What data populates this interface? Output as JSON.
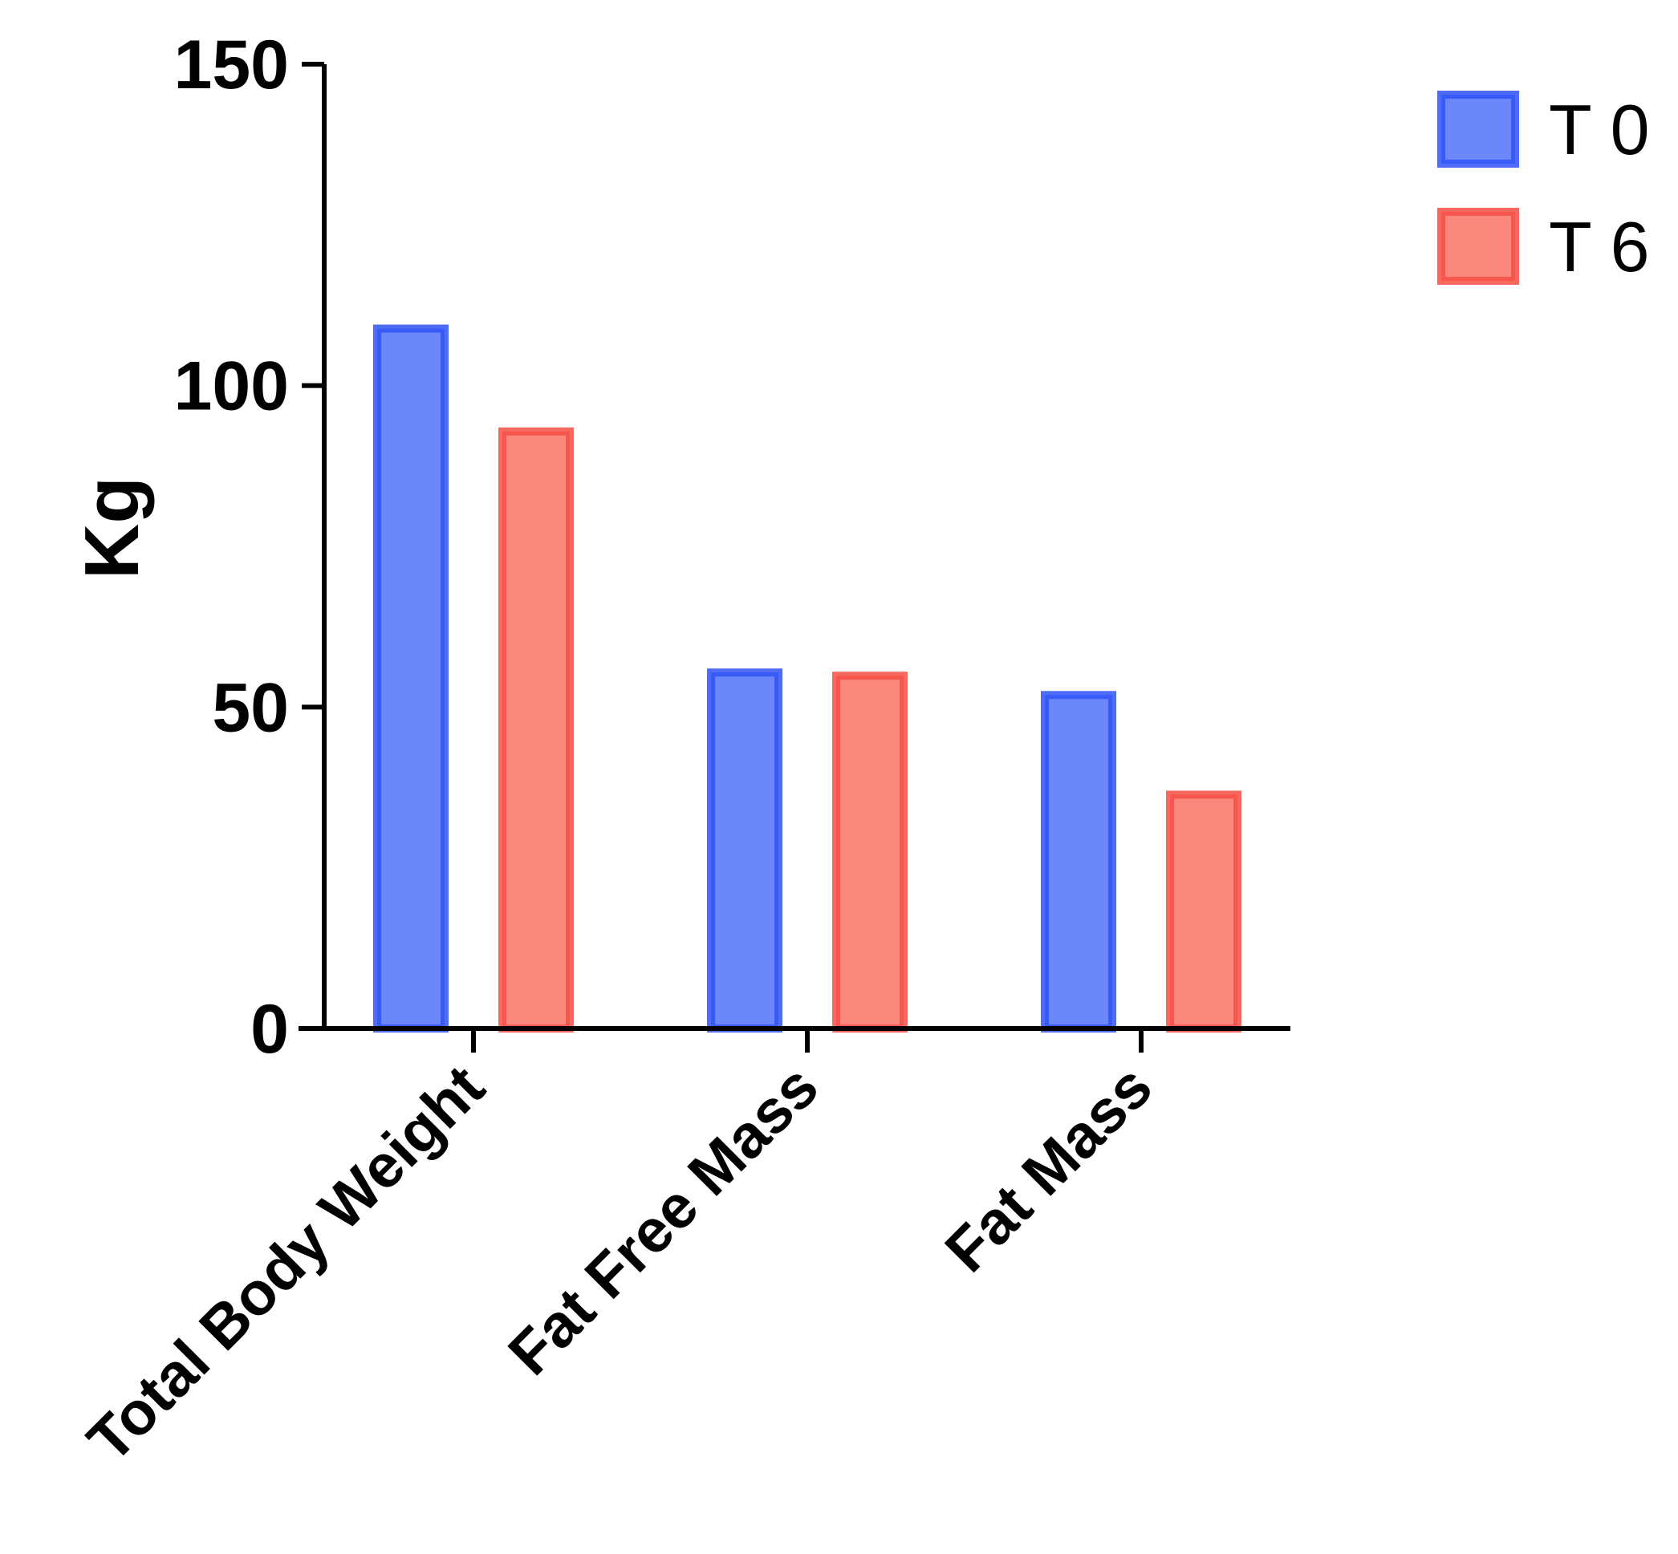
{
  "chart_data": {
    "type": "bar",
    "title": "",
    "xlabel": "",
    "ylabel": "Kg",
    "ylim": [
      0,
      150
    ],
    "yticks": [
      "0",
      "50",
      "100",
      "150"
    ],
    "categories": [
      "Total Body Weight",
      "Fat Free Mass",
      "Fat Mass"
    ],
    "series": [
      {
        "name": "T 0",
        "values": [
          109.5,
          56,
          52.5
        ],
        "fill": "#6b87fa",
        "stroke": "#2f52f5"
      },
      {
        "name": "T 6",
        "values": [
          93.5,
          55.5,
          37
        ],
        "fill": "#fa887d",
        "stroke": "#f44d44"
      }
    ],
    "legend_position": "top-right",
    "grid": false
  }
}
